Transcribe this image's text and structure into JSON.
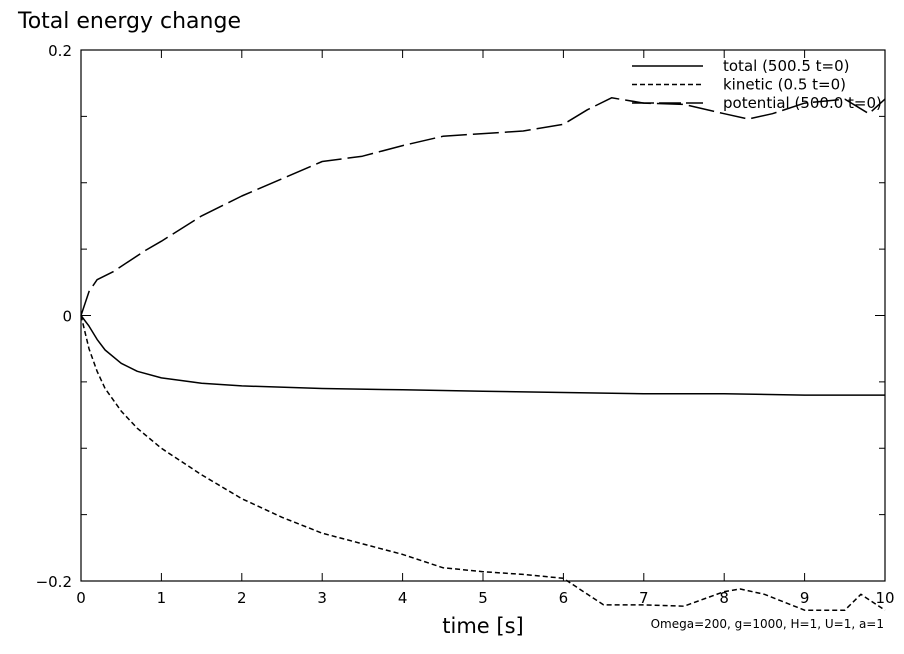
{
  "chart_data": {
    "type": "line",
    "title": "Total energy change",
    "xlabel": "time [s]",
    "ylabel": "",
    "xlim": [
      0,
      10
    ],
    "ylim": [
      -0.2,
      0.2
    ],
    "x_ticks": [
      0,
      1,
      2,
      3,
      4,
      5,
      6,
      7,
      8,
      9,
      10
    ],
    "x_tick_labels": [
      "0",
      "1",
      "2",
      "3",
      "4",
      "5",
      "6",
      "7",
      "8",
      "9",
      "10"
    ],
    "y_ticks": [
      -0.2,
      0,
      0.2
    ],
    "y_tick_labels": [
      "−0.2",
      "0",
      "0.2"
    ],
    "grid": false,
    "legend_position": "top-right",
    "annotation": "Omega=200, g=1000, H=1, U=1, a=1",
    "series": [
      {
        "name": "total (500.5 t=0)",
        "style": "solid",
        "color": "#000000",
        "x": [
          0,
          0.1,
          0.2,
          0.3,
          0.5,
          0.7,
          1.0,
          1.5,
          2.0,
          3.0,
          4.0,
          5.0,
          6.0,
          7.0,
          8.0,
          9.0,
          10.0
        ],
        "y": [
          0,
          -0.008,
          -0.018,
          -0.026,
          -0.036,
          -0.042,
          -0.047,
          -0.051,
          -0.053,
          -0.055,
          -0.056,
          -0.057,
          -0.058,
          -0.059,
          -0.059,
          -0.06,
          -0.06
        ]
      },
      {
        "name": "kinetic (0.5 t=0)",
        "style": "dashed",
        "color": "#000000",
        "x": [
          0,
          0.1,
          0.2,
          0.3,
          0.5,
          0.7,
          1.0,
          1.5,
          2.0,
          2.5,
          3.0,
          3.5,
          4.0,
          4.5,
          5.0,
          5.5,
          6.0,
          6.3,
          6.5,
          7.0,
          7.5,
          8.0,
          8.2,
          8.5,
          9.0,
          9.5,
          9.7,
          10.0
        ],
        "y": [
          0,
          -0.025,
          -0.042,
          -0.055,
          -0.072,
          -0.085,
          -0.1,
          -0.12,
          -0.138,
          -0.152,
          -0.164,
          -0.172,
          -0.18,
          -0.19,
          -0.193,
          -0.195,
          -0.198,
          -0.21,
          -0.218,
          -0.218,
          -0.219,
          -0.208,
          -0.206,
          -0.21,
          -0.222,
          -0.222,
          -0.21,
          -0.222
        ]
      },
      {
        "name": "potential (500.0 t=0)",
        "style": "long-dash",
        "color": "#000000",
        "x": [
          0,
          0.1,
          0.2,
          0.4,
          0.6,
          0.8,
          1.0,
          1.5,
          2.0,
          2.5,
          3.0,
          3.5,
          4.0,
          4.5,
          5.0,
          5.5,
          6.0,
          6.3,
          6.6,
          7.0,
          7.5,
          8.0,
          8.3,
          8.6,
          9.0,
          9.5,
          9.8,
          10.0
        ],
        "y": [
          0,
          0.018,
          0.027,
          0.033,
          0.041,
          0.049,
          0.056,
          0.075,
          0.09,
          0.103,
          0.116,
          0.12,
          0.128,
          0.135,
          0.137,
          0.139,
          0.144,
          0.155,
          0.164,
          0.16,
          0.159,
          0.152,
          0.148,
          0.152,
          0.16,
          0.163,
          0.152,
          0.163
        ]
      }
    ]
  }
}
